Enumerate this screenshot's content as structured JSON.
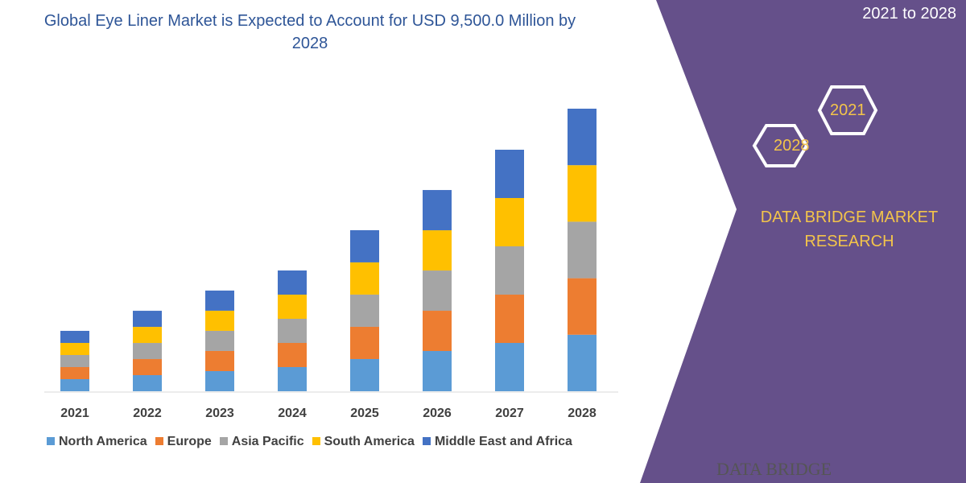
{
  "chart_data": {
    "type": "bar",
    "stacked": true,
    "title": "Global Eye Liner Market is Expected to Account for USD 9,500.0 Million by 2028",
    "categories": [
      "2021",
      "2022",
      "2023",
      "2024",
      "2025",
      "2026",
      "2027",
      "2028"
    ],
    "series": [
      {
        "name": "North America",
        "color": "#5b9bd5",
        "values": [
          406,
          541,
          677,
          812,
          1083,
          1353,
          1624,
          1900
        ]
      },
      {
        "name": "Europe",
        "color": "#ed7d31",
        "values": [
          406,
          541,
          677,
          812,
          1083,
          1353,
          1624,
          1900
        ]
      },
      {
        "name": "Asia Pacific",
        "color": "#a5a5a5",
        "values": [
          406,
          541,
          677,
          812,
          1083,
          1353,
          1624,
          1900
        ]
      },
      {
        "name": "South America",
        "color": "#ffc000",
        "values": [
          406,
          541,
          677,
          812,
          1083,
          1353,
          1624,
          1900
        ]
      },
      {
        "name": "Middle East and Africa",
        "color": "#4472c4",
        "values": [
          406,
          541,
          677,
          812,
          1083,
          1353,
          1624,
          1900
        ]
      }
    ],
    "ylim": [
      0,
      9500
    ],
    "grid": false,
    "legend": "bottom"
  },
  "side": {
    "period": "2021 to 2028",
    "hex_a": "2021",
    "hex_b": "2028",
    "brand": "DATA BRIDGE MARKET RESEARCH",
    "logo": "DATA BRIDGE",
    "panel_color": "#65508a",
    "accent": "#f3c44a"
  }
}
